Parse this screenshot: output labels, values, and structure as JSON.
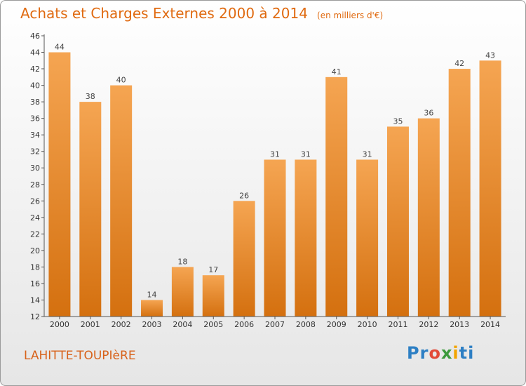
{
  "title": "Achats et Charges Externes 2000 à 2014",
  "subtitle": "(en milliers d'€)",
  "place": "LAHITTE-TOUPIèRE",
  "logo": {
    "p1": "Pr",
    "p2": "o",
    "p3": "x",
    "p4": "i",
    "p5": "ti"
  },
  "colors": {
    "bar_light": "#f5a552",
    "bar_dark": "#d4700f",
    "title": "#e06a10",
    "axis": "#555555"
  },
  "chart_data": {
    "type": "bar",
    "categories": [
      "2000",
      "2001",
      "2002",
      "2003",
      "2004",
      "2005",
      "2006",
      "2007",
      "2008",
      "2009",
      "2010",
      "2011",
      "2012",
      "2013",
      "2014"
    ],
    "values": [
      44,
      38,
      40,
      14,
      18,
      17,
      26,
      31,
      31,
      41,
      31,
      35,
      36,
      42,
      43
    ],
    "title": "Achats et Charges Externes 2000 à 2014",
    "subtitle": "(en milliers d'€)",
    "xlabel": "",
    "ylabel": "",
    "ylim": [
      12,
      46
    ],
    "yticks": [
      12,
      14,
      16,
      18,
      20,
      22,
      24,
      26,
      28,
      30,
      32,
      34,
      36,
      38,
      40,
      42,
      44,
      46
    ],
    "grid": false,
    "data_labels": true
  }
}
